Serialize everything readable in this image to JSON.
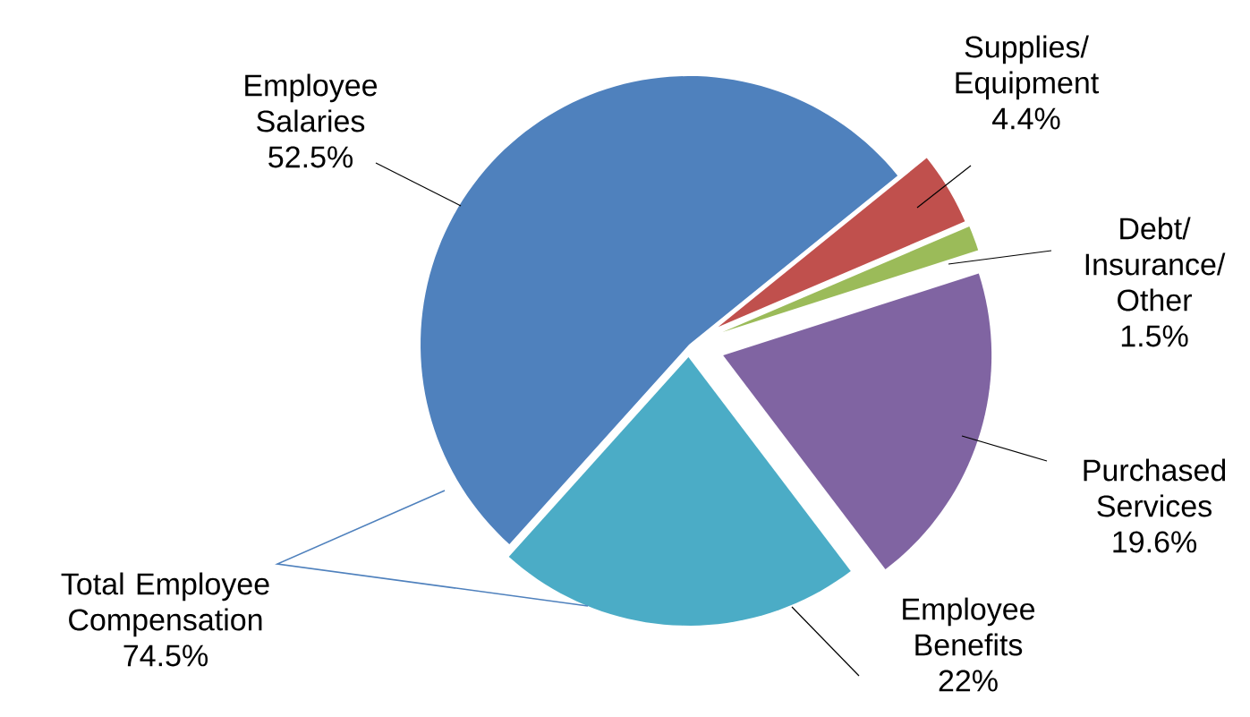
{
  "chart_data": {
    "type": "pie",
    "categories": [
      "Employee Salaries",
      "Employee Benefits",
      "Purchased Services",
      "Debt/ Insurance/ Other",
      "Supplies/ Equipment"
    ],
    "values": [
      52.5,
      22,
      19.6,
      1.5,
      4.4
    ],
    "value_labels": [
      "52.5%",
      "22%",
      "19.6%",
      "1.5%",
      "4.4%"
    ],
    "colors": [
      "#4f81bd",
      "#4bacc6",
      "#8064a2",
      "#9bbb59",
      "#c0504d"
    ],
    "annotations": [
      "Total Employee Compensation 74.5%"
    ]
  }
}
